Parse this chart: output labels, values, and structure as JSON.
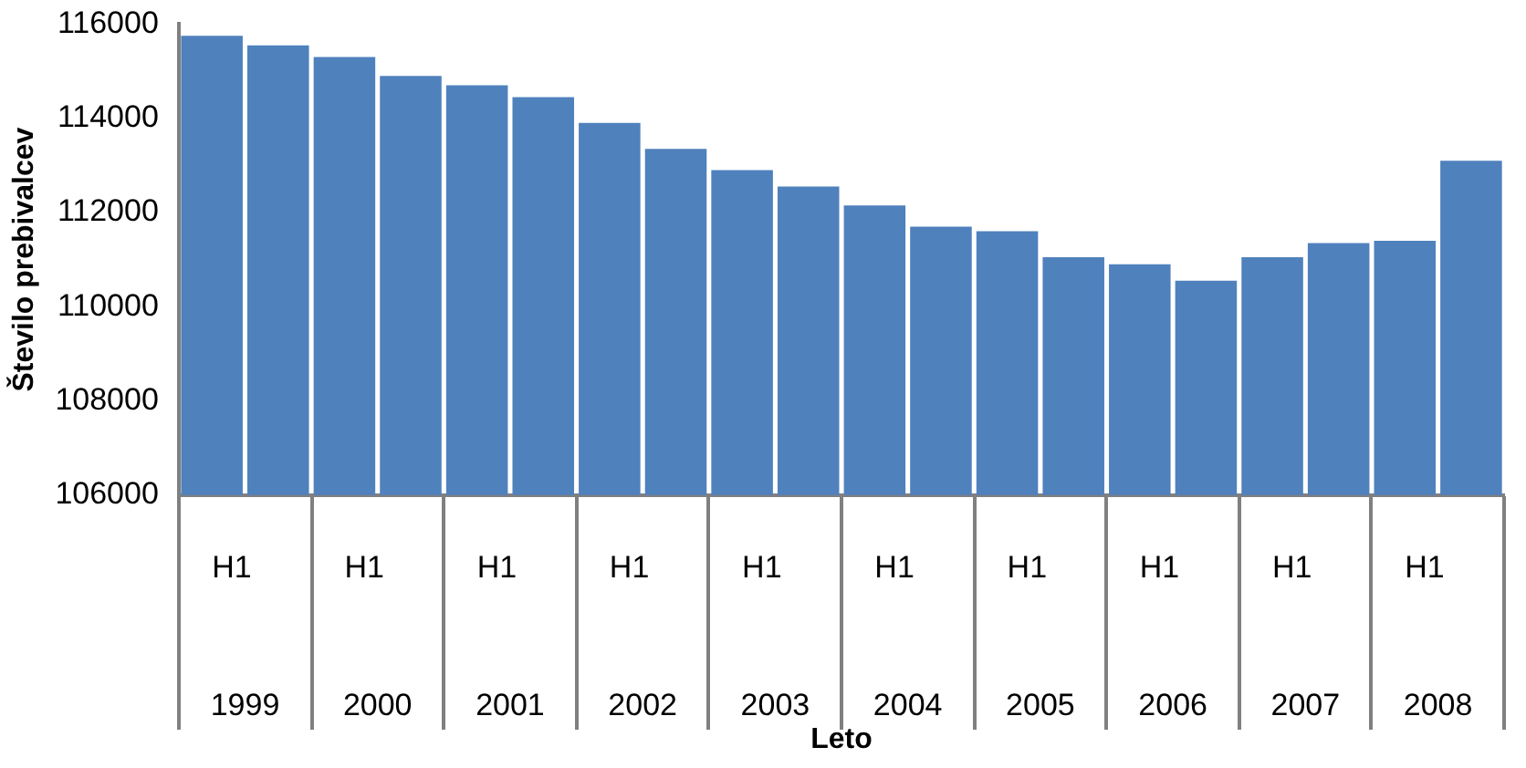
{
  "chart_data": {
    "type": "bar",
    "xlabel": "Leto",
    "ylabel": "Število prebivalcev",
    "categories": [
      "H1",
      null,
      "H1",
      null,
      "H1",
      null,
      "H1",
      null,
      "H1",
      null,
      "H1",
      null,
      "H1",
      null,
      "H1",
      null,
      "H1",
      null,
      "H1",
      null
    ],
    "values": [
      115750,
      115550,
      115300,
      114900,
      114700,
      114450,
      113900,
      113350,
      112900,
      112550,
      112150,
      111700,
      111600,
      111050,
      110900,
      110550,
      111050,
      111350,
      111400,
      113100
    ],
    "color": "#4f81bd",
    "ylim": [
      106000,
      116000
    ],
    "yticks": [
      106000,
      108000,
      110000,
      112000,
      114000,
      116000
    ],
    "annotations": [
      "1999",
      "2000",
      "2001",
      "2002",
      "2003",
      "2004",
      "2005",
      "2006",
      "2007",
      "2008"
    ],
    "grid": false,
    "legend": false
  }
}
